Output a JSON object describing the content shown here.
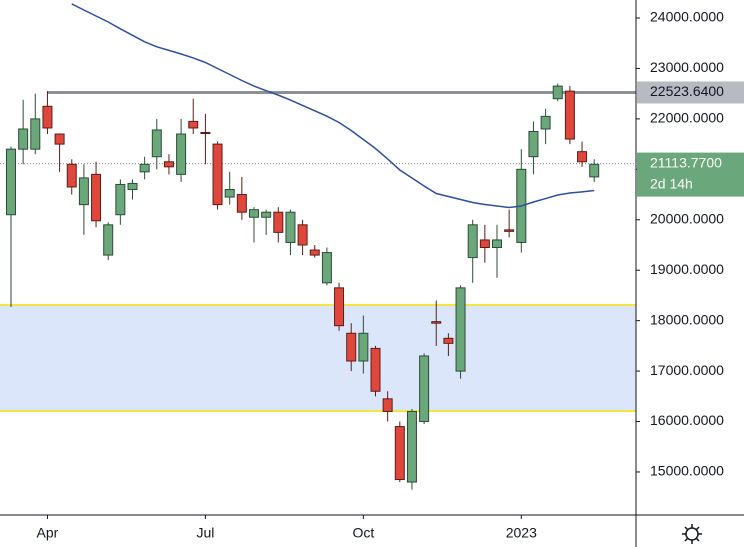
{
  "chart_data": {
    "type": "candlestick",
    "open": [
      20100,
      21400,
      21400,
      22250,
      21700,
      21100,
      20300,
      20900,
      19300,
      20100,
      20600,
      20950,
      21250,
      21150,
      20900,
      21950,
      21730,
      21500,
      20450,
      20500,
      20050,
      20050,
      20150,
      19550,
      19900,
      19400,
      18750,
      18650,
      17750,
      17200,
      17450,
      16450,
      15900,
      14800,
      16000,
      17980,
      17650,
      17000,
      19250,
      19600,
      19450,
      19800,
      19550,
      21250,
      21800,
      22400,
      22550,
      21350,
      20850
    ],
    "high": [
      21450,
      22380,
      22500,
      22550,
      21700,
      21200,
      21100,
      21150,
      19950,
      20800,
      20800,
      21250,
      22000,
      21300,
      22000,
      22400,
      22100,
      21550,
      20950,
      20850,
      20250,
      20200,
      20250,
      20200,
      20000,
      19500,
      19450,
      18750,
      17950,
      18100,
      17500,
      16600,
      16000,
      16250,
      17350,
      18400,
      17750,
      18700,
      20000,
      19900,
      19900,
      20200,
      21400,
      21950,
      22200,
      22700,
      22650,
      21550,
      21200
    ],
    "low": [
      18270,
      21100,
      21300,
      21700,
      20950,
      20500,
      19700,
      19850,
      19200,
      19900,
      20400,
      20800,
      21000,
      20900,
      20750,
      21700,
      21100,
      20200,
      20300,
      20000,
      19550,
      19700,
      19550,
      19300,
      19300,
      19250,
      18700,
      17800,
      17000,
      16950,
      16500,
      16000,
      14800,
      14650,
      15950,
      17500,
      17300,
      16850,
      18750,
      19150,
      18850,
      19650,
      19350,
      20900,
      21500,
      22350,
      21500,
      21050,
      20750
    ],
    "close": [
      21400,
      21800,
      22000,
      21820,
      21500,
      20650,
      20830,
      19980,
      19900,
      20700,
      20720,
      21100,
      21780,
      21050,
      21700,
      21820,
      21710,
      20300,
      20600,
      20150,
      20200,
      20150,
      19750,
      20150,
      19500,
      19300,
      19350,
      17900,
      17200,
      17750,
      16600,
      16200,
      14850,
      16200,
      17300,
      17950,
      17550,
      18650,
      19900,
      19450,
      19600,
      19770,
      21000,
      21750,
      22050,
      22650,
      21600,
      21150,
      21100
    ],
    "up_color": "#6aa77a",
    "down_color": "#e0473c",
    "moving_average": {
      "color": "#2e4f9e",
      "values": [
        null,
        null,
        null,
        null,
        null,
        24278,
        24159,
        24040,
        23921,
        23786,
        23657,
        23528,
        23429,
        23358,
        23286,
        23209,
        23118,
        22999,
        22880,
        22761,
        22650,
        22560,
        22471,
        22374,
        22267,
        22160,
        22053,
        21928,
        21770,
        21591,
        21413,
        21205,
        20987,
        20828,
        20669,
        20521,
        20461,
        20402,
        20342,
        20302,
        20273,
        20243,
        20273,
        20352,
        20421,
        20491,
        20530,
        20554,
        20580
      ]
    },
    "hline": {
      "value": 22523.64,
      "label": "22523.6400",
      "color": "#8e9098"
    },
    "last_price": {
      "value": 21113.77,
      "label": "21113.7700",
      "countdown": "2d 14h"
    },
    "zone": {
      "low": 16208,
      "high": 18310,
      "fill": "#dbe6fb",
      "edge": "#f5e53f"
    },
    "xlim": [
      -0.905,
      51.44
    ],
    "xticks": [
      {
        "value": 3,
        "label": "Apr"
      },
      {
        "value": 16,
        "label": "Jul"
      },
      {
        "value": 29,
        "label": "Oct"
      },
      {
        "value": 42,
        "label": "2023"
      }
    ],
    "ylim": [
      14147,
      24357
    ],
    "yticks": [
      {
        "value": 24000,
        "label": "24000.0000"
      },
      {
        "value": 23000,
        "label": "23000.0000"
      },
      {
        "value": 22000,
        "label": "22000.0000"
      },
      {
        "value": 21000,
        "label": "21000.0000"
      },
      {
        "value": 20000,
        "label": "20000.0000"
      },
      {
        "value": 19000,
        "label": "19000.0000"
      },
      {
        "value": 18000,
        "label": "18000.0000"
      },
      {
        "value": 17000,
        "label": "17000.0000"
      },
      {
        "value": 16000,
        "label": "16000.0000"
      },
      {
        "value": 15000,
        "label": "15000.0000"
      }
    ]
  }
}
